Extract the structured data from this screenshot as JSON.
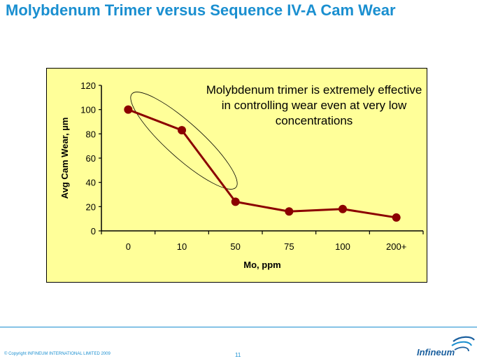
{
  "slide": {
    "title": "Molybdenum Trimer versus Sequence IV-A Cam Wear",
    "callout": "Molybdenum trimer is extremely effective in controlling wear even at very low concentrations",
    "copyright": "© Copyright INFINEUM INTERNATIONAL LIMITED 2009",
    "page_number": "11",
    "logo_text": "Infineum"
  },
  "colors": {
    "title": "#1a8fd0",
    "plot_background": "#ffff99",
    "series_line": "#8b0000",
    "series_marker": "#8b0000",
    "footer": "#1a8fd0",
    "logo": "#1a5f9e"
  },
  "chart_data": {
    "type": "line",
    "title": "",
    "xlabel": "Mo, ppm",
    "ylabel": "Avg Cam Wear, µm",
    "categories": [
      "0",
      "10",
      "50",
      "75",
      "100",
      "200+"
    ],
    "series": [
      {
        "values": [
          100,
          83,
          24,
          16,
          18,
          11
        ]
      }
    ],
    "ylim": [
      0,
      120
    ],
    "yticks": [
      0,
      20,
      40,
      60,
      80,
      100,
      120
    ],
    "grid": false,
    "legend": "none",
    "annotation": "ellipse around the 0 and 10 ppm points and the drop to 50 ppm"
  }
}
